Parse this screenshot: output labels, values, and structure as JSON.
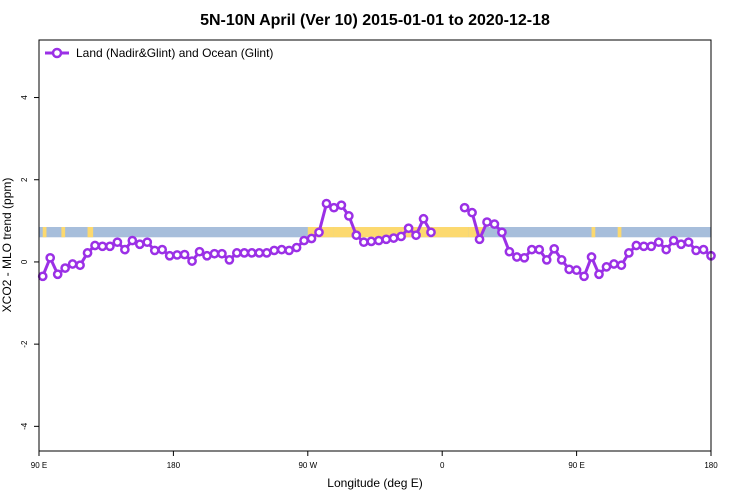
{
  "chart_data": {
    "type": "line",
    "title": "5N-10N April (Ver 10)   2015-01-01 to 2020-12-18",
    "xlabel": "Longitude (deg E)",
    "ylabel": "XCO2 - MLO trend (ppm)",
    "xlim": [
      90,
      450
    ],
    "ylim": [
      -4.6,
      5.4
    ],
    "x_ticks": [
      {
        "value": 90,
        "label": "90 E"
      },
      {
        "value": 162,
        "label": "180"
      },
      {
        "value": 234,
        "label": "90 W"
      },
      {
        "value": 306,
        "label": "0"
      },
      {
        "value": 378,
        "label": "90 E"
      },
      {
        "value": 450,
        "label": "180"
      }
    ],
    "y_ticks": [
      {
        "value": -4,
        "label": "-4"
      },
      {
        "value": -2,
        "label": "-2"
      },
      {
        "value": 0,
        "label": "0"
      },
      {
        "value": 2,
        "label": "2"
      },
      {
        "value": 4,
        "label": "4"
      }
    ],
    "legend": {
      "position": "top-left",
      "entries": [
        "Land (Nadir&Glint) and Ocean (Glint)"
      ]
    },
    "grid": false,
    "surface_band": {
      "y_range": [
        0.6,
        0.85
      ],
      "ocean_color": "#a7bedb",
      "land_color": "#fcd96f"
    },
    "land_segments": [
      [
        92,
        94
      ],
      [
        102,
        104
      ],
      [
        116,
        119
      ],
      [
        234,
        248
      ],
      [
        248,
        320
      ],
      [
        320,
        328
      ],
      [
        386,
        388
      ],
      [
        400,
        402
      ]
    ],
    "series": [
      {
        "color": "#9b30e6",
        "segments": [
          [
            [
              92,
              -0.35
            ],
            [
              96,
              0.1
            ],
            [
              100,
              -0.3
            ],
            [
              104,
              -0.15
            ],
            [
              108,
              -0.05
            ],
            [
              112,
              -0.08
            ],
            [
              116,
              0.22
            ],
            [
              120,
              0.4
            ],
            [
              124,
              0.38
            ],
            [
              128,
              0.38
            ],
            [
              132,
              0.48
            ],
            [
              136,
              0.3
            ],
            [
              140,
              0.52
            ],
            [
              144,
              0.43
            ],
            [
              148,
              0.48
            ],
            [
              152,
              0.28
            ],
            [
              156,
              0.3
            ],
            [
              160,
              0.15
            ],
            [
              164,
              0.17
            ],
            [
              168,
              0.18
            ],
            [
              172,
              0.02
            ],
            [
              176,
              0.25
            ],
            [
              180,
              0.15
            ],
            [
              184,
              0.2
            ],
            [
              188,
              0.2
            ],
            [
              192,
              0.05
            ],
            [
              196,
              0.22
            ],
            [
              200,
              0.22
            ],
            [
              204,
              0.22
            ],
            [
              208,
              0.22
            ],
            [
              212,
              0.22
            ],
            [
              216,
              0.28
            ],
            [
              220,
              0.3
            ],
            [
              224,
              0.28
            ],
            [
              228,
              0.35
            ],
            [
              232,
              0.52
            ],
            [
              236,
              0.57
            ],
            [
              240,
              0.72
            ],
            [
              244,
              1.42
            ],
            [
              248,
              1.32
            ],
            [
              252,
              1.38
            ],
            [
              256,
              1.12
            ],
            [
              260,
              0.65
            ],
            [
              264,
              0.48
            ],
            [
              268,
              0.5
            ],
            [
              272,
              0.52
            ],
            [
              276,
              0.55
            ],
            [
              280,
              0.58
            ],
            [
              284,
              0.62
            ],
            [
              288,
              0.82
            ],
            [
              292,
              0.65
            ],
            [
              296,
              1.05
            ],
            [
              300,
              0.72
            ]
          ],
          [
            [
              318,
              1.32
            ],
            [
              322,
              1.2
            ],
            [
              326,
              0.55
            ],
            [
              330,
              0.97
            ],
            [
              334,
              0.92
            ],
            [
              338,
              0.72
            ],
            [
              342,
              0.25
            ],
            [
              346,
              0.12
            ],
            [
              350,
              0.1
            ],
            [
              354,
              0.3
            ],
            [
              358,
              0.3
            ],
            [
              362,
              0.05
            ],
            [
              366,
              0.32
            ],
            [
              370,
              0.05
            ],
            [
              374,
              -0.18
            ],
            [
              378,
              -0.2
            ],
            [
              382,
              -0.35
            ],
            [
              386,
              0.12
            ],
            [
              390,
              -0.3
            ],
            [
              394,
              -0.12
            ],
            [
              398,
              -0.05
            ],
            [
              402,
              -0.08
            ],
            [
              406,
              0.22
            ],
            [
              410,
              0.4
            ],
            [
              414,
              0.38
            ],
            [
              418,
              0.38
            ],
            [
              422,
              0.48
            ],
            [
              426,
              0.3
            ],
            [
              430,
              0.52
            ],
            [
              434,
              0.43
            ],
            [
              438,
              0.48
            ],
            [
              442,
              0.28
            ],
            [
              446,
              0.3
            ],
            [
              450,
              0.15
            ]
          ]
        ]
      }
    ]
  }
}
